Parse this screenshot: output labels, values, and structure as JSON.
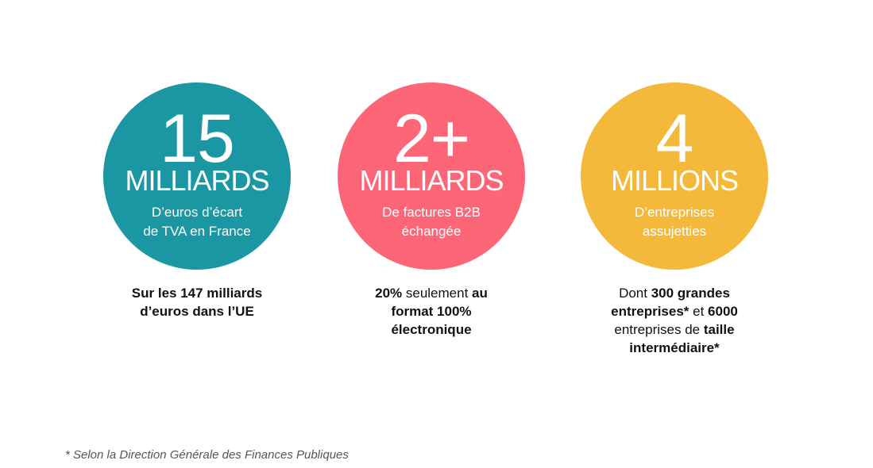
{
  "stats": [
    {
      "number": "15",
      "unit": "MILLIARDS",
      "sub_line1": "D’euros d’écart",
      "sub_line2": "de TVA en France",
      "color": "#1a97a2",
      "caption": {
        "line1": "Sur les 147 milliards",
        "line2": "d’euros dans l’UE"
      }
    },
    {
      "number": "2+",
      "unit": "MILLIARDS",
      "sub_line1": "De factures B2B",
      "sub_line2": "échangée",
      "color": "#fd6677",
      "caption": {
        "l1_bold": "20%",
        "l1_normal": " seulement ",
        "l1_bold2": "au",
        "line2": "format 100%",
        "line3": "électronique"
      }
    },
    {
      "number": "4",
      "unit": "MILLIONS",
      "sub_line1": "D’entreprises",
      "sub_line2": "assujetties",
      "color": "#f4b93b",
      "caption": {
        "l1_normal": "Dont ",
        "l1_bold": "300 grandes",
        "l2_bold": "entreprises*",
        "l2_normal": " et ",
        "l2_bold2": "6000",
        "l3_normal": "entreprises de ",
        "l3_bold": "taille",
        "l4_bold": "intermédiaire*"
      }
    }
  ],
  "footnote": "* Selon la Direction Générale des Finances Publiques"
}
